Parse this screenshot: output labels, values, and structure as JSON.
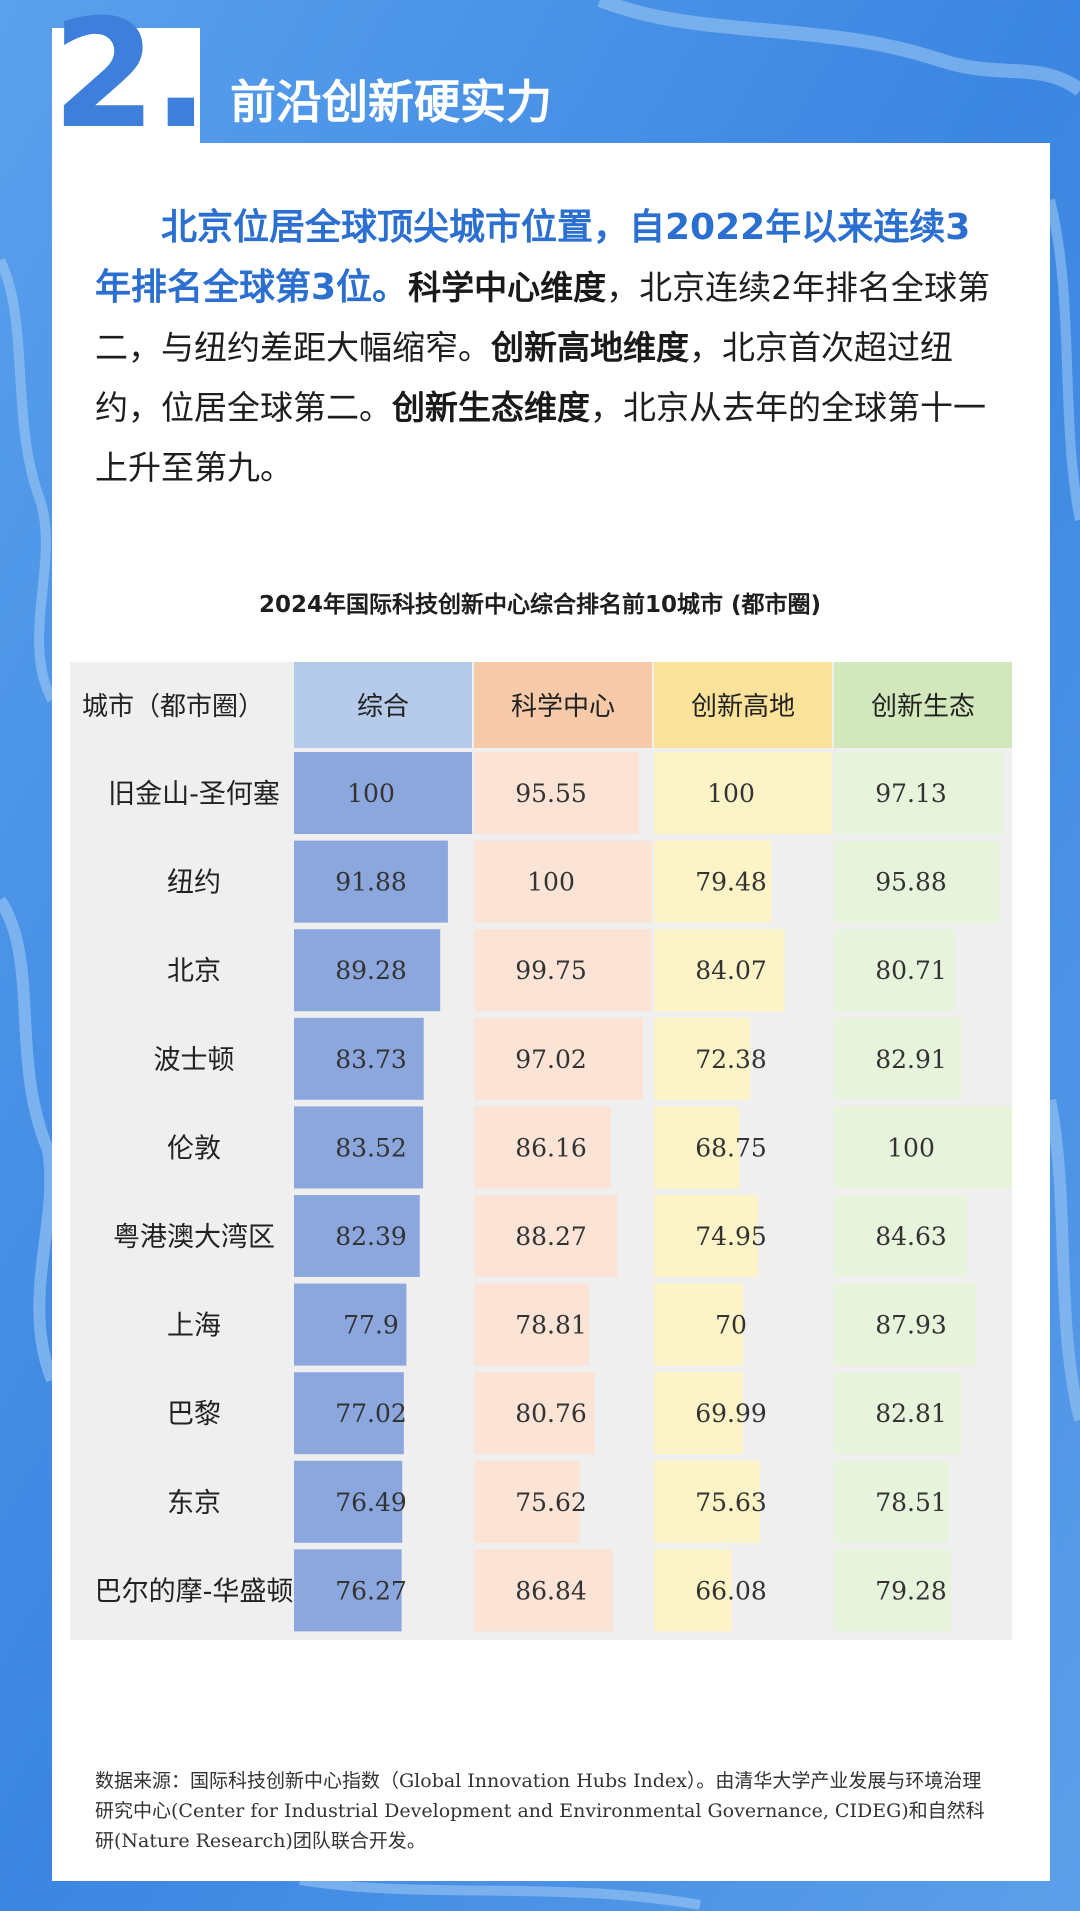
{
  "section": {
    "number": "2.",
    "title": "前沿创新硬实力"
  },
  "intro": {
    "highlight": "北京位居全球顶尖城市位置，自2022年以来连续3年排名全球第3位。",
    "bold_1": "科学中心维度",
    "text_1": "，北京连续2年排名全球第二，与纽约差距大幅缩窄。",
    "bold_2": "创新高地维度",
    "text_2": "，北京首次超过纽约，位居全球第二。",
    "bold_3": "创新生态维度",
    "text_3": "，北京从去年的全球第十一上升至第九。"
  },
  "chart_data": {
    "type": "table",
    "title": "2024年国际科技创新中心综合排名前10城市 (都市圈)",
    "row_header": "城市（都市圈）",
    "columns": [
      {
        "name": "综合",
        "header_color": "#b6cbea",
        "bar_color": "#8ba7de"
      },
      {
        "name": "科学中心",
        "header_color": "#f6caa8",
        "bar_color": "#fbe4d6"
      },
      {
        "name": "创新高地",
        "header_color": "#fbe29a",
        "bar_color": "#fcf3c6"
      },
      {
        "name": "创新生态",
        "header_color": "#d2e8bc",
        "bar_color": "#e8f3dc"
      }
    ],
    "rows": [
      {
        "city": "旧金山-圣何塞",
        "values": [
          "100",
          "95.55",
          "100",
          "97.13"
        ]
      },
      {
        "city": "纽约",
        "values": [
          "91.88",
          "100",
          "79.48",
          "95.88"
        ]
      },
      {
        "city": "北京",
        "values": [
          "89.28",
          "99.75",
          "84.07",
          "80.71"
        ]
      },
      {
        "city": "波士顿",
        "values": [
          "83.73",
          "97.02",
          "72.38",
          "82.91"
        ]
      },
      {
        "city": "伦敦",
        "values": [
          "83.52",
          "86.16",
          "68.75",
          "100"
        ]
      },
      {
        "city": "粤港澳大湾区",
        "values": [
          "82.39",
          "88.27",
          "74.95",
          "84.63"
        ]
      },
      {
        "city": "上海",
        "values": [
          "77.9",
          "78.81",
          "70",
          "87.93"
        ]
      },
      {
        "city": "巴黎",
        "values": [
          "77.02",
          "80.76",
          "69.99",
          "82.81"
        ]
      },
      {
        "city": "东京",
        "values": [
          "76.49",
          "75.62",
          "75.63",
          "78.51"
        ]
      },
      {
        "city": "巴尔的摩-华盛顿",
        "values": [
          "76.27",
          "86.84",
          "66.08",
          "79.28"
        ]
      }
    ],
    "bar_scale": [
      40,
      100
    ]
  },
  "source": "数据来源：国际科技创新中心指数（Global Innovation Hubs Index）。由清华大学产业发展与环境治理研究中心(Center for Industrial Development and Environmental Governance, CIDEG)和自然科研(Nature Research)团队联合开发。"
}
